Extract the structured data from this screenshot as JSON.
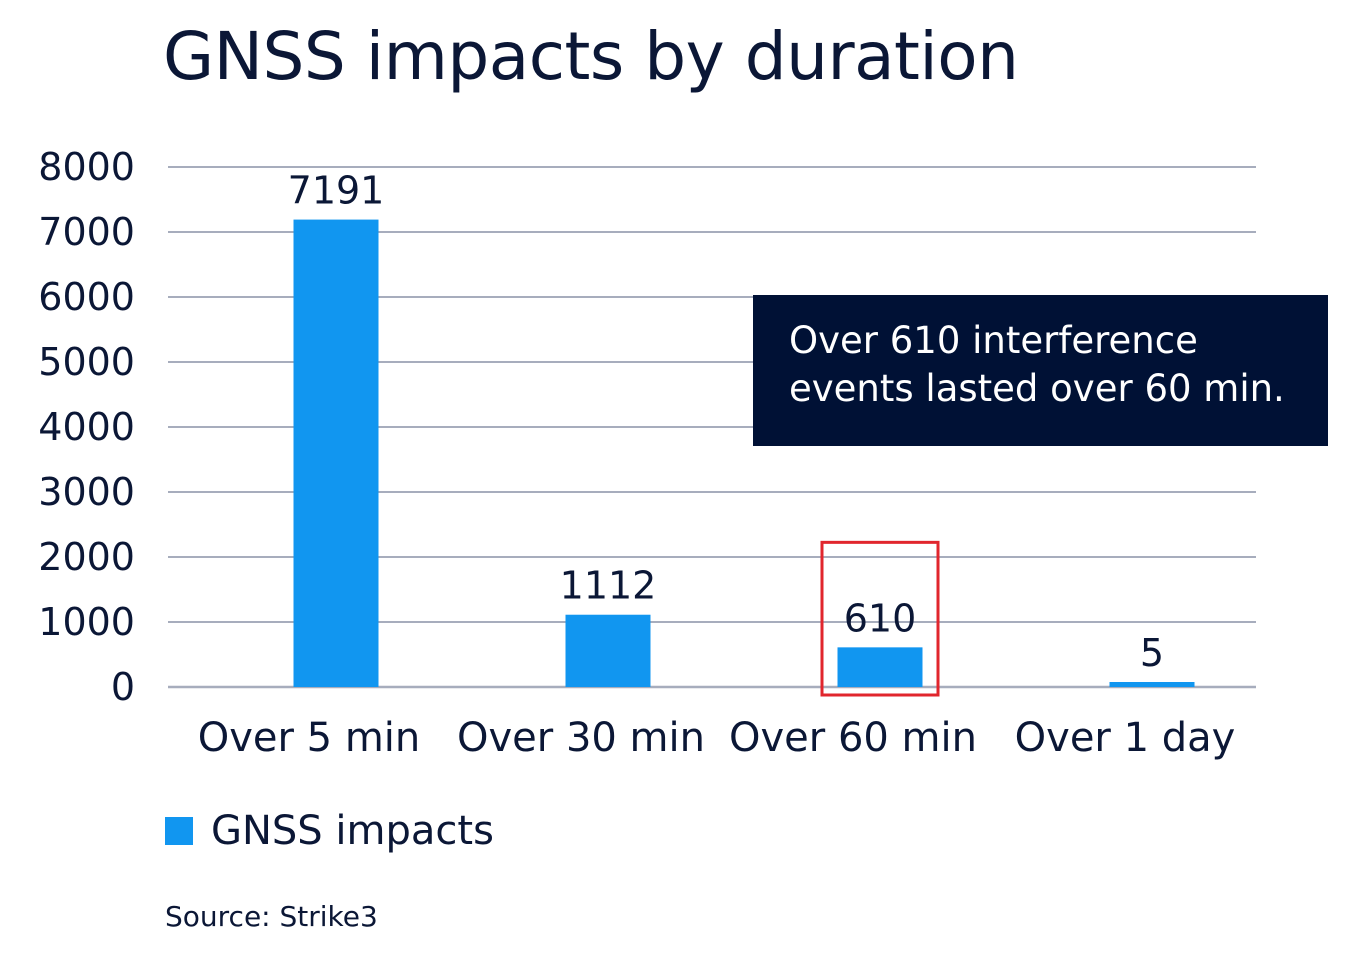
{
  "chart_data": {
    "type": "bar",
    "title": "GNSS impacts by duration",
    "categories": [
      "Over 5 min",
      "Over 30 min",
      "Over 60 min",
      "Over 1 day"
    ],
    "series": [
      {
        "name": "GNSS impacts",
        "values": [
          7191,
          1112,
          610,
          5
        ]
      }
    ],
    "data_labels": [
      "7191",
      "1112",
      "610",
      "5"
    ],
    "y_ticks": [
      "0",
      "1000",
      "2000",
      "3000",
      "4000",
      "5000",
      "6000",
      "7000",
      "8000"
    ],
    "ylim": [
      0,
      8000
    ],
    "grid": true,
    "legend_position": "bottom-left",
    "highlighted_category": "Over 60 min",
    "annotation": {
      "lines": [
        "Over 610 interference",
        "events lasted over 60 min."
      ]
    },
    "source": "Source: Strike3",
    "colors": {
      "bar": "#1196f0",
      "gridline": "#a7adbd",
      "highlight_box": "#e1262d",
      "callout_background": "#001135",
      "text": "#0b1736"
    }
  }
}
